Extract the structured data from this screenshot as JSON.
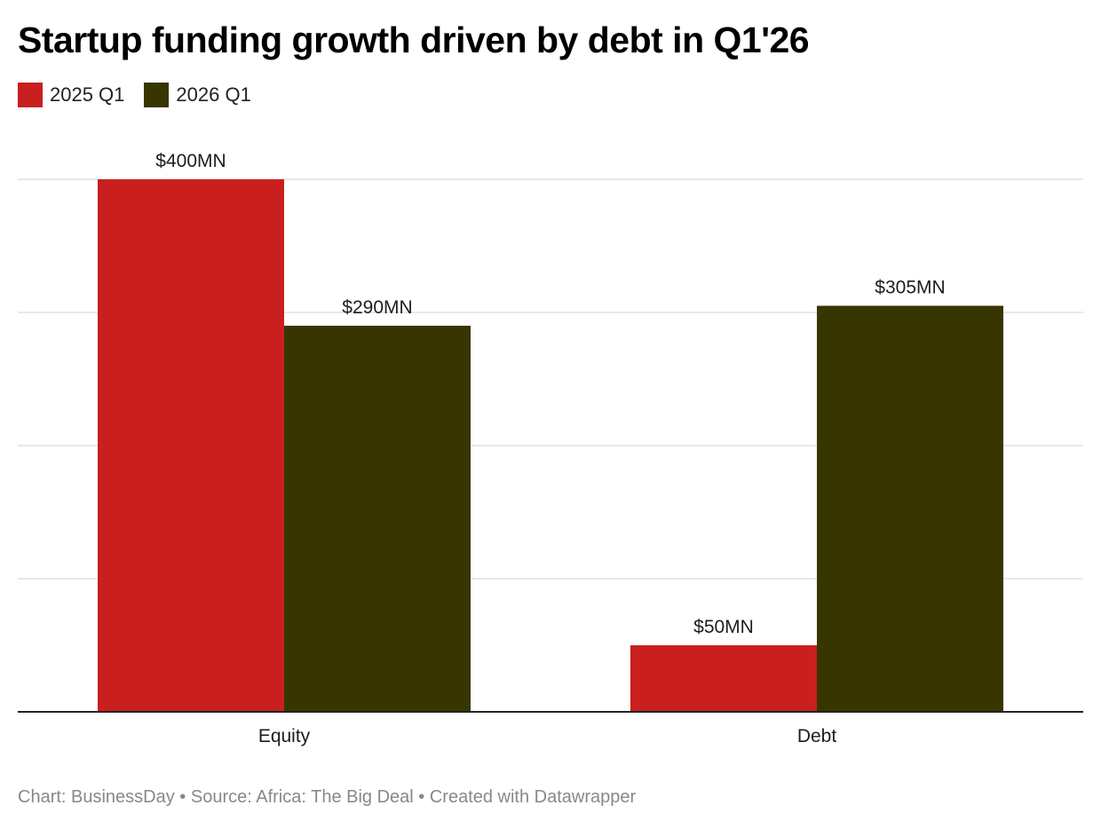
{
  "chart_data": {
    "type": "bar",
    "title": "Startup funding growth driven by debt in Q1'26",
    "categories": [
      "Equity",
      "Debt"
    ],
    "series": [
      {
        "name": "2025 Q1",
        "color": "#c91f1f",
        "values": [
          400,
          50
        ],
        "labels": [
          "$400MN",
          "$50MN"
        ]
      },
      {
        "name": "2026 Q1",
        "color": "#383600",
        "values": [
          290,
          305
        ],
        "labels": [
          "$290MN",
          "$305MN"
        ]
      }
    ],
    "ylim": [
      0,
      400
    ],
    "yticks": [
      0,
      100,
      200,
      300,
      400
    ],
    "grid": true,
    "legend": "top-left",
    "xlabel": "",
    "ylabel": ""
  },
  "footer": "Chart: BusinessDay • Source: Africa: The Big Deal • Created with Datawrapper"
}
